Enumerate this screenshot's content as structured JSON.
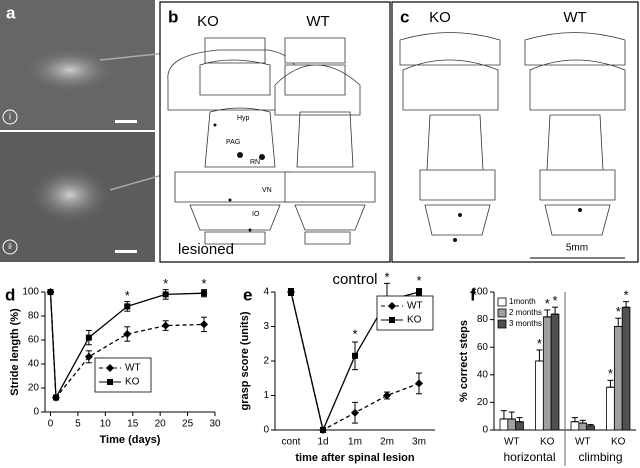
{
  "panels": {
    "a": {
      "label": "a",
      "sub": [
        "i",
        "ii"
      ]
    },
    "b": {
      "label": "b",
      "ko": "KO",
      "wt": "WT",
      "regions": [
        "Hyp",
        "PAG",
        "RN",
        "VN",
        "IO"
      ],
      "caption": "lesioned"
    },
    "c": {
      "label": "c",
      "ko": "KO",
      "wt": "WT",
      "scale": "5mm"
    }
  },
  "chart_data": [
    {
      "type": "line",
      "panel": "d",
      "ylabel": "Stride length (%)",
      "xlabel": "Time (days)",
      "x": [
        0,
        1,
        7,
        14,
        21,
        28
      ],
      "xlim": [
        -1,
        30
      ],
      "xticks": [
        0,
        5,
        10,
        15,
        20,
        25,
        30
      ],
      "ylim": [
        0,
        100
      ],
      "yticks": [
        0,
        20,
        40,
        60,
        80,
        100
      ],
      "legend": "bottom",
      "series": [
        {
          "name": "WT",
          "color": "#000000",
          "marker": "diamond",
          "dashed": true,
          "values": [
            100,
            12,
            46,
            65,
            72,
            73
          ],
          "errors": [
            0,
            2,
            5,
            6,
            4,
            6
          ]
        },
        {
          "name": "KO",
          "color": "#000000",
          "marker": "square",
          "dashed": false,
          "values": [
            100,
            12,
            62,
            88,
            98,
            99
          ],
          "errors": [
            0,
            2,
            6,
            4,
            4,
            3
          ]
        }
      ],
      "annotations": [
        {
          "text": "*",
          "x": 14,
          "y": 96
        },
        {
          "text": "*",
          "x": 21,
          "y": 106
        },
        {
          "text": "*",
          "x": 28,
          "y": 106
        }
      ]
    },
    {
      "type": "line",
      "panel": "e",
      "title": "control",
      "ylabel": "grasp score (units)",
      "xlabel": "time after spinal lesion",
      "categories": [
        "cont",
        "1d",
        "1m",
        "2m",
        "3m"
      ],
      "ylim": [
        0,
        4
      ],
      "yticks": [
        0,
        1,
        2,
        3,
        4
      ],
      "legend": "top-right",
      "series": [
        {
          "name": "WT",
          "color": "#000000",
          "marker": "diamond",
          "dashed": true,
          "values": [
            4,
            0,
            0.5,
            1,
            1.35
          ],
          "errors": [
            0.1,
            0.05,
            0.3,
            0.1,
            0.3
          ]
        },
        {
          "name": "KO",
          "color": "#000000",
          "marker": "square",
          "dashed": false,
          "values": [
            4,
            0,
            2.15,
            3.75,
            4
          ],
          "errors": [
            0.1,
            0.05,
            0.4,
            0.5,
            0.1
          ]
        }
      ],
      "annotations": [
        {
          "text": "*",
          "x": "1m",
          "y": 2.75
        },
        {
          "text": "*",
          "x": "2m",
          "y": 4.4
        },
        {
          "text": "*",
          "x": "3m",
          "y": 4.3
        }
      ]
    },
    {
      "type": "bar",
      "panel": "f",
      "ylabel": "% correct steps",
      "categories": [
        "WT",
        "KO",
        "WT",
        "KO"
      ],
      "groups": [
        "horizontal",
        "climbing"
      ],
      "ylim": [
        0,
        100
      ],
      "yticks": [
        0,
        20,
        40,
        60,
        80,
        100
      ],
      "legend": "top-left",
      "series": [
        {
          "name": "1month",
          "color": "#ffffff",
          "values": [
            8,
            50,
            6,
            31
          ],
          "errors": [
            6,
            8,
            3,
            5
          ]
        },
        {
          "name": "2 months",
          "color": "#a0a0a0",
          "values": [
            8,
            82,
            5,
            75
          ],
          "errors": [
            5,
            5,
            2,
            6
          ]
        },
        {
          "name": "3 months",
          "color": "#505050",
          "values": [
            6,
            84,
            3,
            89
          ],
          "errors": [
            3,
            5,
            1,
            4
          ]
        }
      ],
      "annotations": [
        {
          "text": "*",
          "category": 1,
          "series": 0,
          "y": 62
        },
        {
          "text": "*",
          "category": 1,
          "series": 1,
          "y": 91
        },
        {
          "text": "*",
          "category": 1,
          "series": 2,
          "y": 93
        },
        {
          "text": "*",
          "category": 3,
          "series": 0,
          "y": 40
        },
        {
          "text": "*",
          "category": 3,
          "series": 1,
          "y": 85
        },
        {
          "text": "*",
          "category": 3,
          "series": 2,
          "y": 97
        }
      ]
    }
  ]
}
